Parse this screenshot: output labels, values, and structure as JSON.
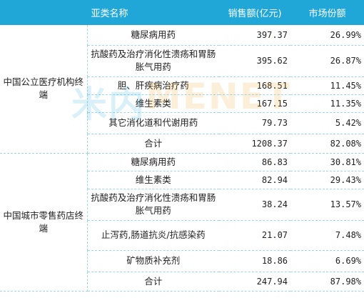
{
  "columns": {
    "category": "亚类名称",
    "sales": "销售额(亿元)",
    "share": "市场份额"
  },
  "groups": [
    {
      "name": "中国公立医疗机构终端",
      "rows": [
        {
          "sub": "糖尿病用药",
          "sales": "397.37",
          "share": "26.99%"
        },
        {
          "sub": "抗酸药及治疗消化性溃疡和胃肠胀气用药",
          "sales": "395.62",
          "share": "26.87%"
        },
        {
          "sub": "胆、肝疾病治疗药",
          "sales": "168.51",
          "share": "11.45%"
        },
        {
          "sub": "维生素类",
          "sales": "167.15",
          "share": "11.35%"
        },
        {
          "sub": "其它消化道和代谢用药",
          "sales": "79.73",
          "share": "5.42%"
        },
        {
          "sub": "合计",
          "sales": "1208.37",
          "share": "82.08%"
        }
      ]
    },
    {
      "name": "中国城市零售药店终端",
      "rows": [
        {
          "sub": "糖尿病用药",
          "sales": "86.83",
          "share": "30.81%"
        },
        {
          "sub": "维生素类",
          "sales": "82.94",
          "share": "29.43%"
        },
        {
          "sub": "抗酸药及治疗消化性溃疡和胃肠胀气用药",
          "sales": "38.24",
          "share": "13.57%"
        },
        {
          "sub": "止泻药,肠道抗炎/抗感染药",
          "sales": "21.07",
          "share": "7.48%"
        },
        {
          "sub": "矿物质补充剂",
          "sales": "18.86",
          "share": "6.69%"
        },
        {
          "sub": "合计",
          "sales": "247.94",
          "share": "87.98%"
        }
      ]
    }
  ],
  "watermark": {
    "left_text": "米内",
    "right_text": "MENET",
    "left_color": "#20a7d8",
    "right_color": "#f0a020"
  },
  "colors": {
    "header_bg": "#20a7d8",
    "border": "#9ed8ee"
  }
}
